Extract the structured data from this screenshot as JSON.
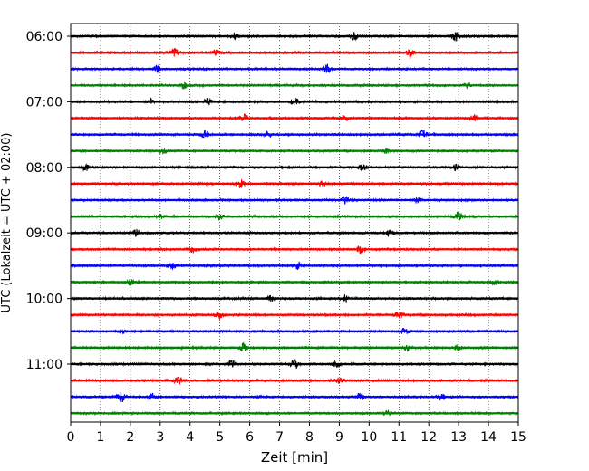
{
  "chart_data": {
    "type": "line",
    "title": "",
    "xlabel": "Zeit  [min]",
    "ylabel": "UTC (Lokalzeit = UTC + 02:00)",
    "xlim": [
      0,
      15
    ],
    "x_ticks": [
      "0",
      "1",
      "2",
      "3",
      "4",
      "5",
      "6",
      "7",
      "8",
      "9",
      "10",
      "11",
      "12",
      "13",
      "14",
      "15"
    ],
    "y_tick_labels": [
      "06:00",
      "07:00",
      "08:00",
      "09:00",
      "10:00",
      "11:00"
    ],
    "grid": "vertical dotted",
    "trace_interval_min": 15,
    "trace_count": 24,
    "first_trace_start": "06:00",
    "color_cycle": [
      "#000000",
      "#ff0000",
      "#0000ff",
      "#008000"
    ],
    "series": [
      {
        "start": "06:00",
        "bursts": [
          [
            5.5,
            0.5
          ],
          [
            9.5,
            0.55
          ],
          [
            12.9,
            0.7
          ]
        ]
      },
      {
        "start": "06:15",
        "bursts": [
          [
            3.5,
            0.6
          ],
          [
            4.9,
            0.4
          ],
          [
            11.4,
            0.8
          ]
        ]
      },
      {
        "start": "06:30",
        "bursts": [
          [
            2.9,
            0.5
          ],
          [
            8.6,
            0.65
          ]
        ]
      },
      {
        "start": "06:45",
        "bursts": [
          [
            3.8,
            0.5
          ],
          [
            13.3,
            0.4
          ]
        ]
      },
      {
        "start": "07:00",
        "bursts": [
          [
            2.7,
            0.4
          ],
          [
            4.6,
            0.5
          ],
          [
            7.5,
            0.6
          ]
        ]
      },
      {
        "start": "07:15",
        "bursts": [
          [
            5.8,
            0.5
          ],
          [
            9.2,
            0.4
          ],
          [
            13.5,
            0.4
          ]
        ]
      },
      {
        "start": "07:30",
        "bursts": [
          [
            4.5,
            0.6
          ],
          [
            6.6,
            0.4
          ],
          [
            11.8,
            0.7
          ]
        ]
      },
      {
        "start": "07:45",
        "bursts": [
          [
            3.1,
            0.45
          ],
          [
            10.6,
            0.4
          ]
        ]
      },
      {
        "start": "08:00",
        "bursts": [
          [
            0.5,
            0.5
          ],
          [
            9.8,
            0.55
          ],
          [
            12.9,
            0.4
          ]
        ]
      },
      {
        "start": "08:15",
        "bursts": [
          [
            5.7,
            0.6
          ],
          [
            8.4,
            0.4
          ]
        ]
      },
      {
        "start": "08:30",
        "bursts": [
          [
            9.2,
            0.55
          ],
          [
            11.6,
            0.5
          ]
        ]
      },
      {
        "start": "08:45",
        "bursts": [
          [
            3.0,
            0.4
          ],
          [
            5.0,
            0.4
          ],
          [
            13.0,
            0.85
          ]
        ]
      },
      {
        "start": "09:00",
        "bursts": [
          [
            2.2,
            0.5
          ],
          [
            10.7,
            0.45
          ]
        ]
      },
      {
        "start": "09:15",
        "bursts": [
          [
            4.1,
            0.5
          ],
          [
            9.7,
            0.5
          ]
        ]
      },
      {
        "start": "09:30",
        "bursts": [
          [
            3.4,
            0.45
          ],
          [
            7.6,
            0.5
          ]
        ]
      },
      {
        "start": "09:45",
        "bursts": [
          [
            2.0,
            0.4
          ],
          [
            14.2,
            0.4
          ]
        ]
      },
      {
        "start": "10:00",
        "bursts": [
          [
            6.7,
            0.4
          ],
          [
            9.2,
            0.55
          ]
        ]
      },
      {
        "start": "10:15",
        "bursts": [
          [
            5.0,
            0.6
          ],
          [
            11.0,
            0.5
          ]
        ]
      },
      {
        "start": "10:30",
        "bursts": [
          [
            11.2,
            0.5
          ],
          [
            1.7,
            0.3
          ]
        ]
      },
      {
        "start": "10:45",
        "bursts": [
          [
            5.8,
            0.7
          ],
          [
            11.3,
            0.5
          ],
          [
            13.0,
            0.5
          ]
        ]
      },
      {
        "start": "11:00",
        "bursts": [
          [
            5.4,
            0.55
          ],
          [
            7.5,
            0.75
          ],
          [
            8.9,
            0.4
          ]
        ]
      },
      {
        "start": "11:15",
        "bursts": [
          [
            3.6,
            0.55
          ],
          [
            9.0,
            0.4
          ]
        ]
      },
      {
        "start": "11:30",
        "bursts": [
          [
            1.7,
            0.75
          ],
          [
            2.7,
            0.55
          ],
          [
            9.7,
            0.55
          ],
          [
            12.4,
            0.55
          ]
        ]
      },
      {
        "start": "11:45",
        "bursts": [
          [
            10.6,
            0.45
          ]
        ]
      }
    ]
  }
}
